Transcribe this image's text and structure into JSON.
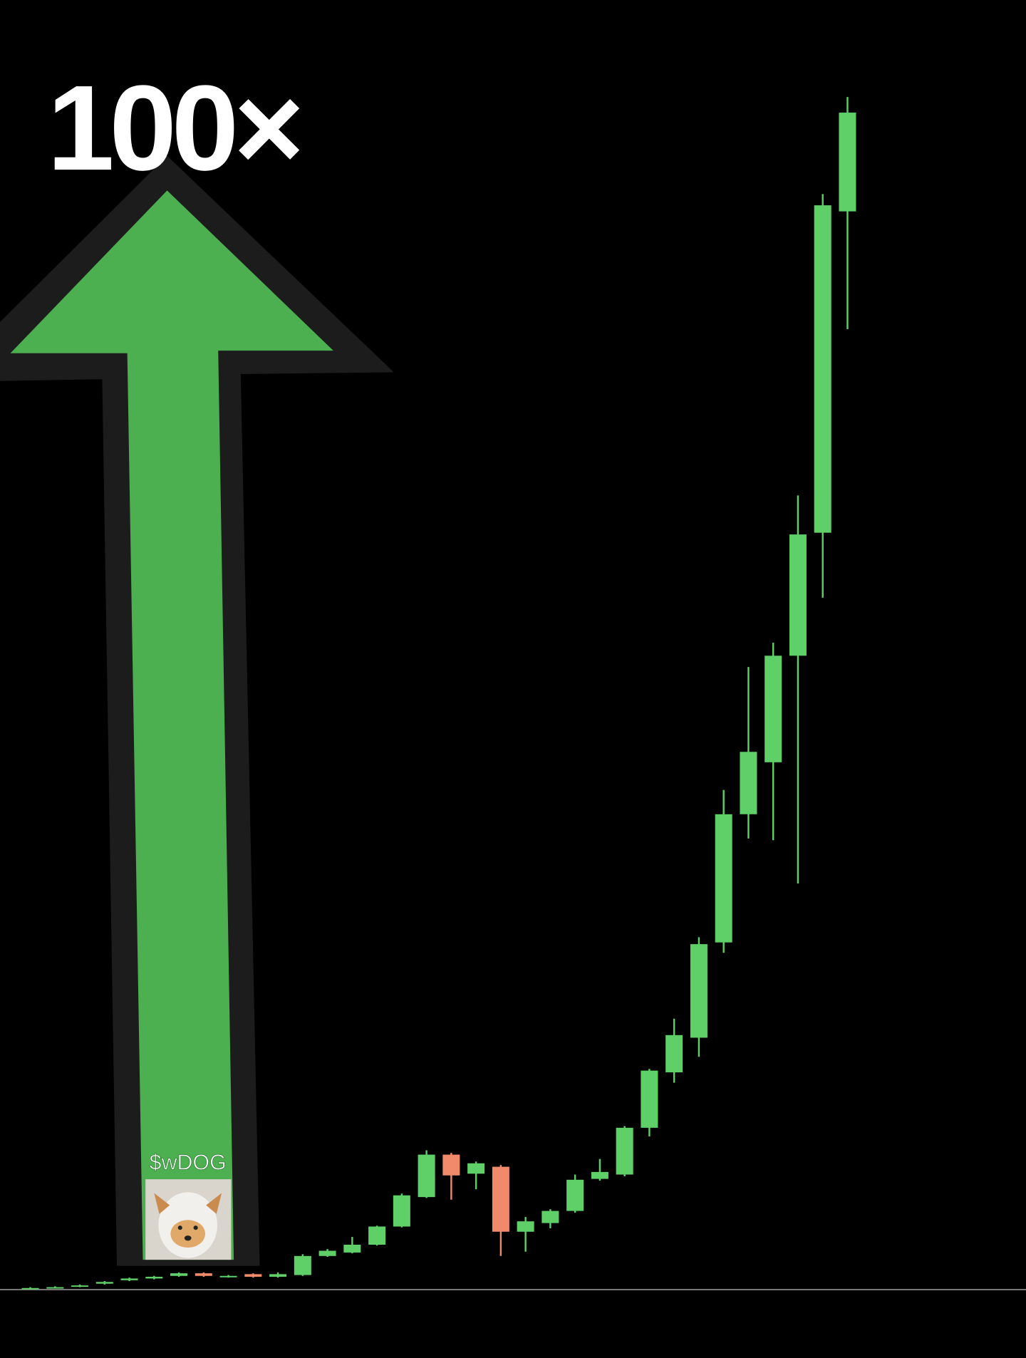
{
  "chart_data": {
    "type": "candlestick",
    "title": "100×",
    "annotation": "$wDOG",
    "open": [
      0,
      1,
      3,
      6,
      10,
      12,
      15,
      18,
      14,
      17,
      14,
      16,
      38,
      42,
      51,
      72,
      106,
      155,
      133,
      141,
      66,
      76,
      90,
      127,
      132,
      186,
      250,
      290,
      400,
      548,
      608,
      731,
      873,
      1244
    ],
    "high": [
      2,
      3,
      5,
      9,
      13,
      15,
      19,
      19,
      16,
      18,
      19,
      40,
      46,
      60,
      73,
      110,
      160,
      157,
      147,
      143,
      83,
      92,
      132,
      150,
      188,
      254,
      312,
      406,
      576,
      718,
      746,
      916,
      1264,
      1376
    ],
    "low": [
      0,
      1,
      2,
      5,
      9,
      11,
      14,
      14,
      13,
      13,
      13,
      15,
      37,
      41,
      50,
      71,
      105,
      103,
      115,
      38,
      43,
      70,
      88,
      125,
      130,
      176,
      238,
      268,
      388,
      520,
      518,
      468,
      798,
      1108
    ],
    "close": [
      1,
      2,
      4,
      8,
      12,
      14,
      18,
      15,
      15,
      14,
      17,
      38,
      44,
      51,
      72,
      108,
      155,
      131,
      145,
      66,
      78,
      90,
      126,
      135,
      186,
      252,
      293,
      398,
      548,
      620,
      731,
      871,
      1251,
      1358
    ],
    "up_color": "#5fd068",
    "down_color": "#f08a6a",
    "ylim": [
      0,
      1400
    ]
  }
}
